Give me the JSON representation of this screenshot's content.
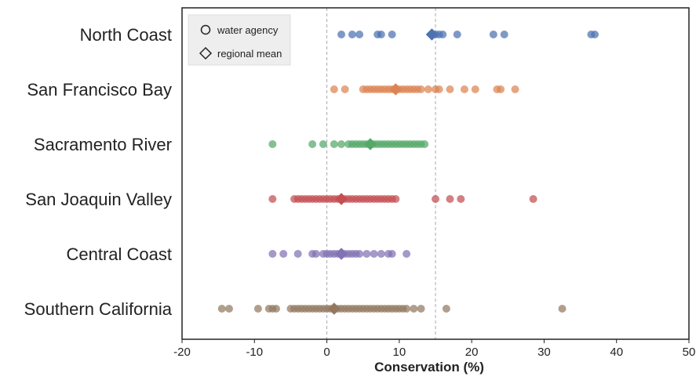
{
  "chart_data": {
    "type": "scatter",
    "xlabel": "Conservation (%)",
    "xlim": [
      -20,
      50
    ],
    "xticks": [
      -20,
      -10,
      0,
      10,
      20,
      30,
      40,
      50
    ],
    "reference_lines": [
      0,
      15
    ],
    "legend": {
      "placement": "top-left",
      "entries": [
        {
          "label": "water agency",
          "marker": "circle"
        },
        {
          "label": "regional mean",
          "marker": "diamond"
        }
      ]
    },
    "categories": [
      "North Coast",
      "San Francisco Bay",
      "Sacramento River",
      "San Joaquin Valley",
      "Central Coast",
      "Southern California"
    ],
    "series": [
      {
        "category": "North Coast",
        "color": "#4c72b0",
        "mean": 14.5,
        "values": [
          2,
          3.5,
          4.5,
          7,
          7.5,
          9,
          15,
          15.5,
          16,
          18,
          23,
          24.5,
          36.5,
          37
        ]
      },
      {
        "category": "San Francisco Bay",
        "color": "#dd8452",
        "mean": 9.5,
        "values": [
          1,
          2.5,
          5,
          5.5,
          6,
          6.5,
          7,
          7.5,
          8,
          8.5,
          9,
          9.5,
          10,
          10.5,
          11,
          11.5,
          12,
          12.5,
          13,
          14,
          15,
          15.5,
          17,
          19,
          20.5,
          23.5,
          24,
          26
        ]
      },
      {
        "category": "Sacramento River",
        "color": "#55a868",
        "mean": 6,
        "values": [
          -7.5,
          -2,
          -0.5,
          1,
          2,
          3,
          3.5,
          4,
          4.5,
          5,
          5.5,
          6,
          6.5,
          7,
          7.5,
          8,
          8.5,
          9,
          9.5,
          10,
          10.5,
          11,
          11.5,
          12,
          12.5,
          13,
          13.5
        ]
      },
      {
        "category": "San Joaquin Valley",
        "color": "#c44e52",
        "mean": 2,
        "values": [
          -7.5,
          -4.5,
          -4,
          -3.5,
          -3,
          -2.5,
          -2,
          -1.5,
          -1,
          -0.5,
          0,
          0.5,
          1,
          1.5,
          2,
          2.5,
          3,
          3.5,
          4,
          4.5,
          5,
          5.5,
          6,
          6.5,
          7,
          7.5,
          8,
          8.5,
          9,
          9.5,
          15,
          17,
          18.5,
          28.5
        ]
      },
      {
        "category": "Central Coast",
        "color": "#8172b3",
        "mean": 2,
        "values": [
          -7.5,
          -6,
          -4,
          -2,
          -1.5,
          -0.5,
          0,
          0.5,
          1,
          1.5,
          2,
          2.5,
          3,
          3.5,
          4,
          4.5,
          5.5,
          6.5,
          7.5,
          8.5,
          9,
          11
        ]
      },
      {
        "category": "Southern California",
        "color": "#937860",
        "mean": 1,
        "values": [
          -14.5,
          -13.5,
          -9.5,
          -8,
          -7.5,
          -7,
          -5,
          -4.5,
          -4,
          -3.5,
          -3,
          -2.5,
          -2,
          -1.5,
          -1,
          -0.5,
          0,
          0.5,
          1,
          1.5,
          2,
          2.5,
          3,
          3.5,
          4,
          4.5,
          5,
          5.5,
          6,
          6.5,
          7,
          7.5,
          8,
          8.5,
          9,
          9.5,
          10,
          10.5,
          11,
          12,
          13,
          16.5,
          32.5
        ]
      }
    ]
  }
}
